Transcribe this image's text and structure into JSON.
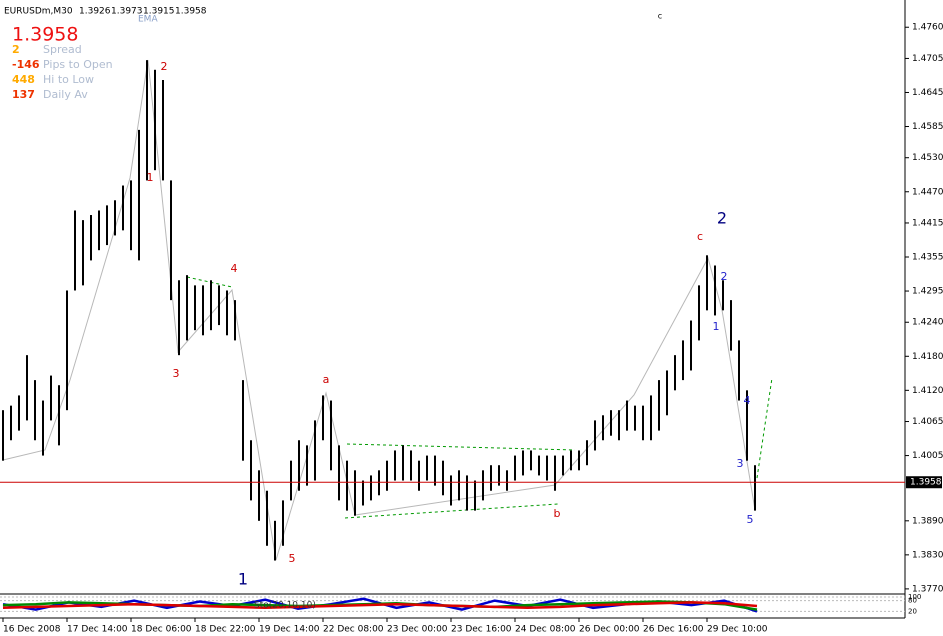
{
  "chart_data": {
    "type": "ohlc",
    "title": "EURUSDm,M30",
    "quote": [
      1.3926,
      1.3973,
      1.3915,
      1.3958
    ],
    "ema_label": "EMA",
    "last_price": 1.3958,
    "info": [
      {
        "value": 2,
        "label": "Spread"
      },
      {
        "value": -146,
        "label": "Pips to Open"
      },
      {
        "value": 448,
        "label": "Hi to Low"
      },
      {
        "value": 137,
        "label": "Daily Av"
      }
    ],
    "categories": [
      "16 Dec 2008",
      null,
      null,
      null,
      null,
      null,
      null,
      null,
      "17 Dec 14:00",
      null,
      null,
      null,
      null,
      null,
      null,
      null,
      "18 Dec 06:00",
      null,
      null,
      null,
      null,
      null,
      null,
      null,
      "18 Dec 22:00",
      null,
      null,
      null,
      null,
      null,
      null,
      null,
      "19 Dec 14:00",
      null,
      null,
      null,
      null,
      null,
      null,
      null,
      "22 Dec 08:00",
      null,
      null,
      null,
      null,
      null,
      null,
      null,
      "23 Dec 00:00",
      null,
      null,
      null,
      null,
      null,
      null,
      null,
      "23 Dec 16:00",
      null,
      null,
      null,
      null,
      null,
      null,
      null,
      "24 Dec 08:00",
      null,
      null,
      null,
      null,
      null,
      null,
      null,
      "26 Dec 00:00",
      null,
      null,
      null,
      null,
      null,
      null,
      null,
      "26 Dec 16:00",
      null,
      null,
      null,
      null,
      null,
      null,
      null,
      "29 Dec 10:00",
      null,
      null,
      null,
      null,
      null,
      null
    ],
    "high": [
      1.4085,
      1.4093,
      1.4111,
      1.4182,
      1.4138,
      1.4102,
      1.4146,
      1.4129,
      1.4296,
      1.4437,
      1.442,
      1.4429,
      1.4437,
      1.4446,
      1.4455,
      1.4481,
      1.449,
      1.4579,
      1.4702,
      1.4685,
      1.4667,
      1.449,
      1.4314,
      1.4323,
      1.4305,
      1.4305,
      1.4314,
      1.4305,
      1.4296,
      1.4279,
      1.4138,
      1.4032,
      1.3979,
      1.3943,
      1.389,
      1.3926,
      1.3996,
      1.4032,
      1.4023,
      1.4067,
      1.4111,
      1.4102,
      1.4023,
      1.3996,
      1.3979,
      1.3961,
      1.397,
      1.3979,
      1.3996,
      1.4014,
      1.4023,
      1.4014,
      1.3996,
      1.4005,
      1.4005,
      1.3996,
      1.397,
      1.3979,
      1.397,
      1.3961,
      1.3979,
      1.3988,
      1.3988,
      1.3979,
      1.4005,
      1.4014,
      1.4014,
      1.4005,
      1.4005,
      1.4005,
      1.4005,
      1.4014,
      1.4014,
      1.4032,
      1.4067,
      1.4076,
      1.4085,
      1.4085,
      1.4102,
      1.4093,
      1.4093,
      1.4111,
      1.4138,
      1.4155,
      1.4182,
      1.4208,
      1.4243,
      1.4305,
      1.4358,
      1.434,
      1.4314,
      1.4279,
      1.4208,
      1.412,
      1.3988
    ],
    "low": [
      1.3996,
      1.4032,
      1.4049,
      1.4067,
      1.4032,
      1.4005,
      1.4067,
      1.4023,
      1.4085,
      1.4296,
      1.4305,
      1.4349,
      1.4367,
      1.4376,
      1.4393,
      1.4402,
      1.4367,
      1.4349,
      1.449,
      1.4508,
      1.449,
      1.4279,
      1.4182,
      1.4208,
      1.4226,
      1.4217,
      1.4226,
      1.4235,
      1.4217,
      1.4208,
      1.3996,
      1.3926,
      1.389,
      1.3846,
      1.382,
      1.3846,
      1.3926,
      1.3943,
      1.3952,
      1.3961,
      1.4032,
      1.3979,
      1.3926,
      1.3908,
      1.3899,
      1.3917,
      1.3926,
      1.3935,
      1.3943,
      1.3961,
      1.3961,
      1.3961,
      1.3943,
      1.3961,
      1.3952,
      1.3935,
      1.3917,
      1.3926,
      1.3908,
      1.3908,
      1.3926,
      1.3943,
      1.3952,
      1.3943,
      1.3961,
      1.397,
      1.3979,
      1.397,
      1.3961,
      1.3943,
      1.397,
      1.3979,
      1.3979,
      1.3988,
      1.4014,
      1.4032,
      1.404,
      1.4032,
      1.4049,
      1.4049,
      1.4032,
      1.4032,
      1.4049,
      1.4076,
      1.412,
      1.4138,
      1.4155,
      1.4208,
      1.4261,
      1.4252,
      1.4261,
      1.419,
      1.4102,
      1.3996,
      1.3908
    ],
    "color": "#000000",
    "price_line_color": "#cc0000",
    "ylim": [
      1.3761,
      1.4808
    ],
    "yticks": [
      {
        "value": 1.476,
        "label": "1.4760"
      },
      {
        "value": 1.4705,
        "label": "1.4705"
      },
      {
        "value": 1.4645,
        "label": "1.4645"
      },
      {
        "value": 1.4585,
        "label": "1.4585"
      },
      {
        "value": 1.453,
        "label": "1.4530"
      },
      {
        "value": 1.447,
        "label": "1.4470"
      },
      {
        "value": 1.4415,
        "label": "1.4415"
      },
      {
        "value": 1.4355,
        "label": "1.4355"
      },
      {
        "value": 1.4295,
        "label": "1.4295"
      },
      {
        "value": 1.424,
        "label": "1.4240"
      },
      {
        "value": 1.418,
        "label": "1.4180"
      },
      {
        "value": 1.412,
        "label": "1.4120"
      },
      {
        "value": 1.4065,
        "label": "1.4065"
      },
      {
        "value": 1.4005,
        "label": "1.4005"
      },
      {
        "value": 1.389,
        "label": "1.3890"
      },
      {
        "value": 1.383,
        "label": "1.3830"
      },
      {
        "value": 1.377,
        "label": "1.3770"
      }
    ],
    "annotations": [
      "c",
      "2",
      "1",
      "4",
      "3",
      "5",
      "1",
      "a",
      "b",
      "c",
      "2",
      "2",
      "1",
      "4",
      "3",
      "5"
    ],
    "indicator": {
      "label": "Sto(20,10,10)",
      "ylim": [
        0,
        100
      ],
      "yticks": [
        20,
        80,
        100
      ],
      "series": [
        {
          "color": "#0000cc",
          "values": [
            60,
            30,
            70,
            45,
            80,
            40,
            75,
            50,
            85,
            35,
            60,
            90,
            40,
            70,
            30,
            80,
            50,
            85,
            40,
            60,
            75,
            55,
            80,
            20
          ]
        },
        {
          "color": "#008800",
          "values": [
            55,
            60,
            70,
            65,
            60,
            55,
            50,
            60,
            55,
            50,
            55,
            60,
            65,
            55,
            50,
            45,
            55,
            60,
            65,
            70,
            75,
            70,
            60,
            30
          ]
        },
        {
          "color": "#dd0000",
          "values": [
            40,
            45,
            50,
            55,
            60,
            55,
            50,
            45,
            40,
            45,
            50,
            55,
            60,
            55,
            50,
            45,
            40,
            45,
            55,
            60,
            65,
            70,
            65,
            50
          ]
        }
      ]
    }
  }
}
